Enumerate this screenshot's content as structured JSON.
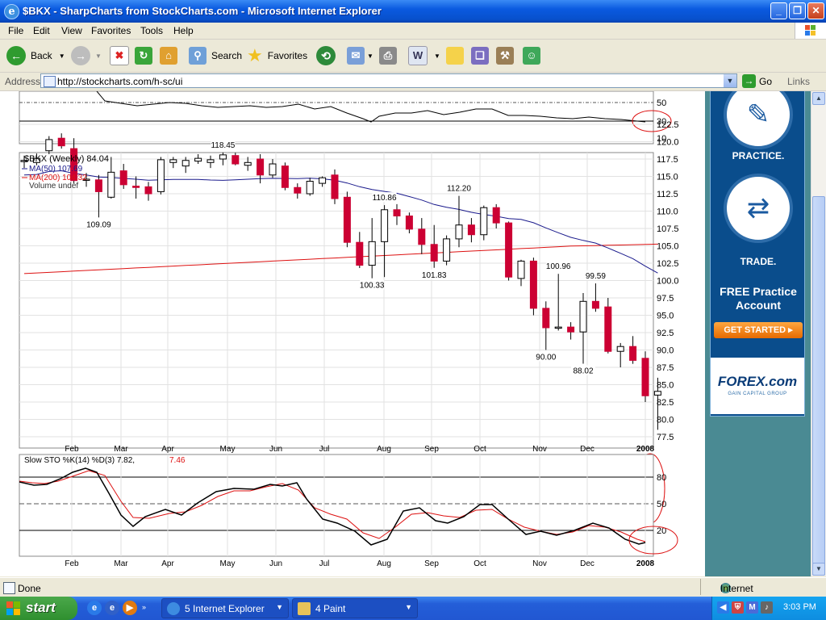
{
  "window": {
    "title": "$BKX - SharpCharts from StockCharts.com - Microsoft Internet Explorer"
  },
  "menu": [
    "File",
    "Edit",
    "View",
    "Favorites",
    "Tools",
    "Help"
  ],
  "toolbar": {
    "back": "Back",
    "search": "Search",
    "favorites": "Favorites"
  },
  "address": {
    "label": "Address",
    "url": "http://stockcharts.com/h-sc/ui",
    "go": "Go",
    "links": "Links"
  },
  "chart_data": [
    {
      "type": "line",
      "axis_labels": [
        "50",
        "30",
        "10"
      ],
      "circled_label": "30",
      "y_range": [
        0,
        60
      ]
    },
    {
      "type": "candlestick",
      "legend": {
        "main": "$BKX (Weekly) 84.04",
        "ma50": "MA(50) 107.69",
        "ma200": "MA(200) 104.32",
        "volume": "Volume undef"
      },
      "y_ticks": [
        "122.5",
        "120.0",
        "117.5",
        "115.0",
        "112.5",
        "110.0",
        "107.5",
        "105.0",
        "102.5",
        "100.0",
        "97.5",
        "95.0",
        "92.5",
        "90.0",
        "87.5",
        "85.0",
        "82.5",
        "80.0",
        "77.5"
      ],
      "x_labels": [
        "Feb",
        "Mar",
        "Apr",
        "May",
        "Jun",
        "Jul",
        "Aug",
        "Sep",
        "Oct",
        "Nov",
        "Dec",
        "2008"
      ],
      "annotations": [
        "118.45",
        "109.09",
        "110.86",
        "112.20",
        "100.33",
        "101.83",
        "100.96",
        "99.59",
        "90.00",
        "88.02"
      ],
      "colors": {
        "up": "#ffffff",
        "down": "#cc0033",
        "ma50": "#1a1a8c",
        "ma200": "#dd1111"
      },
      "candles": [
        {
          "o": 117.2,
          "h": 118.0,
          "l": 116.2,
          "c": 117.3
        },
        {
          "o": 117.0,
          "h": 118.3,
          "l": 116.6,
          "c": 117.6
        },
        {
          "o": 118.7,
          "h": 120.8,
          "l": 118.2,
          "c": 120.3
        },
        {
          "o": 120.5,
          "h": 121.2,
          "l": 119.0,
          "c": 119.4
        },
        {
          "o": 119.0,
          "h": 120.5,
          "l": 114.0,
          "c": 114.4
        },
        {
          "o": 114.5,
          "h": 115.5,
          "l": 113.5,
          "c": 114.6
        },
        {
          "o": 114.5,
          "h": 115.2,
          "l": 109.09,
          "c": 112.8
        },
        {
          "o": 112.0,
          "h": 117.8,
          "l": 111.8,
          "c": 115.6
        },
        {
          "o": 115.8,
          "h": 116.8,
          "l": 113.2,
          "c": 113.8
        },
        {
          "o": 113.6,
          "h": 115.0,
          "l": 111.8,
          "c": 113.4
        },
        {
          "o": 113.5,
          "h": 114.2,
          "l": 111.5,
          "c": 112.5
        },
        {
          "o": 112.8,
          "h": 117.8,
          "l": 112.4,
          "c": 117.4
        },
        {
          "o": 117.0,
          "h": 117.8,
          "l": 116.2,
          "c": 117.4
        },
        {
          "o": 116.5,
          "h": 117.8,
          "l": 115.5,
          "c": 117.3
        },
        {
          "o": 117.2,
          "h": 118.2,
          "l": 116.8,
          "c": 117.6
        },
        {
          "o": 117.0,
          "h": 118.0,
          "l": 116.2,
          "c": 117.4
        },
        {
          "o": 117.5,
          "h": 118.45,
          "l": 116.6,
          "c": 118.1
        },
        {
          "o": 118.0,
          "h": 118.4,
          "l": 116.6,
          "c": 116.8
        },
        {
          "o": 116.6,
          "h": 117.8,
          "l": 115.8,
          "c": 117.0
        },
        {
          "o": 117.5,
          "h": 118.2,
          "l": 114.0,
          "c": 115.2
        },
        {
          "o": 115.2,
          "h": 117.5,
          "l": 114.8,
          "c": 116.8
        },
        {
          "o": 116.5,
          "h": 117.0,
          "l": 113.0,
          "c": 113.4
        },
        {
          "o": 113.4,
          "h": 114.0,
          "l": 111.8,
          "c": 112.6
        },
        {
          "o": 112.5,
          "h": 114.8,
          "l": 112.2,
          "c": 114.3
        },
        {
          "o": 114.0,
          "h": 115.0,
          "l": 113.5,
          "c": 114.8
        },
        {
          "o": 115.2,
          "h": 116.0,
          "l": 111.0,
          "c": 111.8
        },
        {
          "o": 112.0,
          "h": 112.8,
          "l": 104.8,
          "c": 105.5
        },
        {
          "o": 105.5,
          "h": 107.0,
          "l": 101.8,
          "c": 102.2
        },
        {
          "o": 102.2,
          "h": 109.0,
          "l": 100.33,
          "c": 105.6
        },
        {
          "o": 105.6,
          "h": 110.86,
          "l": 100.5,
          "c": 110.2
        },
        {
          "o": 110.2,
          "h": 111.0,
          "l": 108.0,
          "c": 109.3
        },
        {
          "o": 109.3,
          "h": 109.8,
          "l": 106.8,
          "c": 107.4
        },
        {
          "o": 107.4,
          "h": 109.0,
          "l": 103.8,
          "c": 105.2
        },
        {
          "o": 105.2,
          "h": 108.0,
          "l": 101.83,
          "c": 102.8
        },
        {
          "o": 102.8,
          "h": 106.5,
          "l": 102.2,
          "c": 106.0
        },
        {
          "o": 106.0,
          "h": 112.2,
          "l": 104.8,
          "c": 108.0
        },
        {
          "o": 108.0,
          "h": 109.0,
          "l": 105.5,
          "c": 106.6
        },
        {
          "o": 106.6,
          "h": 110.8,
          "l": 105.8,
          "c": 110.5
        },
        {
          "o": 110.5,
          "h": 111.0,
          "l": 107.5,
          "c": 108.3
        },
        {
          "o": 108.3,
          "h": 108.5,
          "l": 100.0,
          "c": 100.5
        },
        {
          "o": 100.3,
          "h": 103.0,
          "l": 99.2,
          "c": 102.8
        },
        {
          "o": 102.8,
          "h": 103.3,
          "l": 95.0,
          "c": 96.0
        },
        {
          "o": 96.0,
          "h": 97.0,
          "l": 90.0,
          "c": 93.2
        },
        {
          "o": 93.2,
          "h": 100.96,
          "l": 92.8,
          "c": 93.3
        },
        {
          "o": 93.3,
          "h": 94.0,
          "l": 91.5,
          "c": 92.6
        },
        {
          "o": 92.6,
          "h": 98.2,
          "l": 88.02,
          "c": 97.0
        },
        {
          "o": 97.0,
          "h": 99.59,
          "l": 95.5,
          "c": 96.0
        },
        {
          "o": 96.2,
          "h": 97.5,
          "l": 89.5,
          "c": 89.8
        },
        {
          "o": 89.8,
          "h": 91.0,
          "l": 87.5,
          "c": 90.5
        },
        {
          "o": 90.5,
          "h": 92.0,
          "l": 88.0,
          "c": 88.5
        },
        {
          "o": 88.8,
          "h": 89.8,
          "l": 82.5,
          "c": 83.4
        },
        {
          "o": 83.5,
          "h": 86.0,
          "l": 78.5,
          "c": 84.04
        }
      ]
    },
    {
      "type": "line",
      "legend_title": "Slow STO %K(14) %D(3) 7.82,",
      "legend_d": "7.46",
      "y_ticks": [
        "80",
        "50",
        "20"
      ],
      "x_labels": [
        "Feb",
        "Mar",
        "Apr",
        "May",
        "Jun",
        "Jul",
        "Aug",
        "Sep",
        "Oct",
        "Nov",
        "Dec",
        "2008"
      ],
      "colors": {
        "k": "#000000",
        "d": "#dd1111"
      }
    }
  ],
  "sidebar_ad": {
    "practice": "PRACTICE.",
    "trade": "TRADE.",
    "free": "FREE Practice Account",
    "cta": "GET STARTED",
    "brand": "FOREX.com",
    "sub": "GAIN CAPITAL GROUP"
  },
  "status": {
    "done": "Done",
    "zone": "Internet"
  },
  "taskbar": {
    "start": "start",
    "ie_group": "5 Internet Explorer",
    "paint_group": "4 Paint",
    "clock": "3:03 PM"
  }
}
